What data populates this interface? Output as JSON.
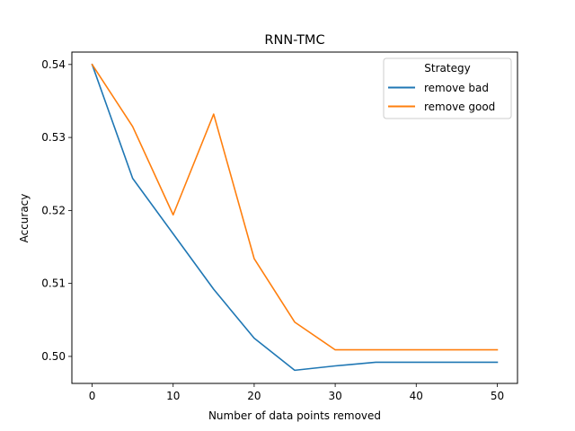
{
  "chart_data": {
    "type": "line",
    "title": "RNN-TMC",
    "xlabel": "Number of data points removed",
    "ylabel": "Accuracy",
    "x": [
      0,
      5,
      10,
      15,
      20,
      25,
      30,
      35,
      40,
      45,
      50
    ],
    "series": [
      {
        "name": "remove bad",
        "color": "#1f77b4",
        "values": [
          0.54,
          0.5244,
          0.5168,
          0.5092,
          0.5025,
          0.4981,
          0.4987,
          0.4992,
          0.4992,
          0.4992,
          0.4992
        ]
      },
      {
        "name": "remove good",
        "color": "#ff7f0e",
        "values": [
          0.54,
          0.5315,
          0.5194,
          0.5332,
          0.5134,
          0.5047,
          0.5009,
          0.5009,
          0.5009,
          0.5009,
          0.5009
        ]
      }
    ],
    "xlim": [
      -2.5,
      52.5
    ],
    "ylim": [
      0.4963,
      0.5417
    ],
    "xticks": [
      0,
      10,
      20,
      30,
      40,
      50
    ],
    "yticks": [
      0.5,
      0.51,
      0.52,
      0.53,
      0.54
    ],
    "ytick_labels": [
      "0.50",
      "0.51",
      "0.52",
      "0.53",
      "0.54"
    ],
    "legend": {
      "title": "Strategy",
      "placement": "top-right"
    },
    "grid": false
  }
}
